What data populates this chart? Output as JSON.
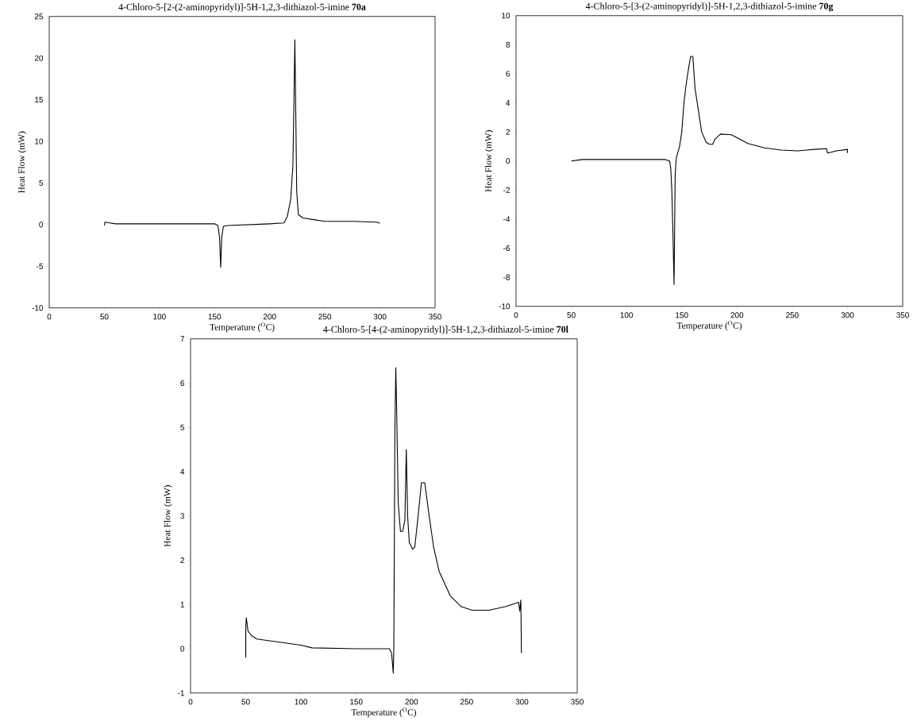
{
  "chart_data": [
    {
      "type": "line",
      "title": "4-Chloro-5-[2-(2-aminopyridyl)]-5H-1,2,3-dithiazol-5-imine **70a**",
      "xlabel": "Temperature ($^{O}$C)",
      "ylabel": "Heat Flow (mW)",
      "xlim": [
        0,
        350
      ],
      "ylim": [
        -10,
        25
      ],
      "xticks": [
        0,
        50,
        100,
        150,
        200,
        250,
        300,
        350
      ],
      "yticks": [
        -10,
        -5,
        0,
        5,
        10,
        15,
        20,
        25
      ],
      "series": [
        {
          "color": "#000000",
          "x": [
            50,
            50.5,
            55,
            60,
            100,
            150,
            153,
            154.5,
            155.5,
            156.5,
            158,
            162,
            200,
            213,
            216,
            219,
            221,
            222,
            222.8,
            223.5,
            224.5,
            226,
            230,
            240,
            250,
            275,
            297,
            299,
            300
          ],
          "values": [
            -0.1,
            0.3,
            0.2,
            0.1,
            0.1,
            0.1,
            -0.1,
            -1.5,
            -5.1,
            -1.5,
            -0.2,
            -0.1,
            0.1,
            0.2,
            1,
            3,
            7,
            15,
            22.2,
            15,
            4,
            1.2,
            0.8,
            0.6,
            0.4,
            0.4,
            0.3,
            0.2,
            0.2
          ]
        }
      ]
    },
    {
      "type": "line",
      "title": "4-Chloro-5-[3-(2-aminopyridyl)]-5H-1,2,3-dithiazol-5-imine **70g**",
      "xlabel": "Temperature ($^{O}$C)",
      "ylabel": "Heat Flow (mW)",
      "xlim": [
        0,
        350
      ],
      "ylim": [
        -10,
        10
      ],
      "xticks": [
        0,
        50,
        100,
        150,
        200,
        250,
        300,
        350
      ],
      "yticks": [
        -10,
        -8,
        -6,
        -4,
        -2,
        0,
        2,
        4,
        6,
        8,
        10
      ],
      "series": [
        {
          "color": "#000000",
          "x": [
            50,
            60,
            100,
            135,
            139,
            140,
            141,
            142,
            143,
            143.5,
            144,
            145,
            148,
            150,
            152,
            154,
            156,
            158,
            160,
            162,
            165,
            168,
            172,
            175,
            178,
            180,
            185,
            195,
            200,
            210,
            225,
            240,
            255,
            270,
            281,
            282,
            290,
            300,
            300
          ],
          "values": [
            0,
            0.1,
            0.1,
            0.1,
            0,
            -0.5,
            -2,
            -5,
            -8.5,
            -5,
            -1,
            0.2,
            1,
            2,
            4,
            5.3,
            6.3,
            7.2,
            7.2,
            5,
            3.5,
            2,
            1.3,
            1.15,
            1.15,
            1.5,
            1.85,
            1.8,
            1.6,
            1.2,
            0.9,
            0.75,
            0.7,
            0.8,
            0.85,
            0.55,
            0.7,
            0.8,
            0.55
          ]
        }
      ]
    },
    {
      "type": "line",
      "title": "4-Chloro-5-[4-(2-aminopyridyl)]-5H-1,2,3-dithiazol-5-imine **70l**",
      "xlabel": "Temperature ($^{O}$C)",
      "ylabel": "Heat Flow (mW)",
      "xlim": [
        0,
        350
      ],
      "ylim": [
        -1,
        7
      ],
      "xticks": [
        0,
        50,
        100,
        150,
        200,
        250,
        300,
        350
      ],
      "yticks": [
        -1,
        0,
        1,
        2,
        3,
        4,
        5,
        6,
        7
      ],
      "series": [
        {
          "color": "#000000",
          "x": [
            50,
            50,
            50.5,
            52,
            55,
            60,
            80,
            100,
            110,
            150,
            180,
            182,
            183.5,
            184,
            185,
            185.8,
            186.5,
            188,
            190,
            192,
            194,
            195.3,
            196.5,
            198,
            201,
            203,
            206,
            209,
            212,
            216,
            220,
            225,
            235,
            245,
            255,
            270,
            285,
            297,
            298,
            299,
            299.5
          ],
          "values": [
            -0.2,
            0.5,
            0.7,
            0.4,
            0.3,
            0.22,
            0.15,
            0.08,
            0.02,
            0,
            0,
            -0.1,
            -0.55,
            0,
            5,
            6.35,
            5.5,
            3.3,
            2.65,
            2.65,
            2.9,
            4.5,
            3,
            2.4,
            2.25,
            2.3,
            3,
            3.75,
            3.75,
            3.0,
            2.3,
            1.75,
            1.2,
            0.95,
            0.87,
            0.87,
            0.95,
            1.05,
            0.85,
            1.1,
            -0.1
          ]
        }
      ]
    }
  ]
}
